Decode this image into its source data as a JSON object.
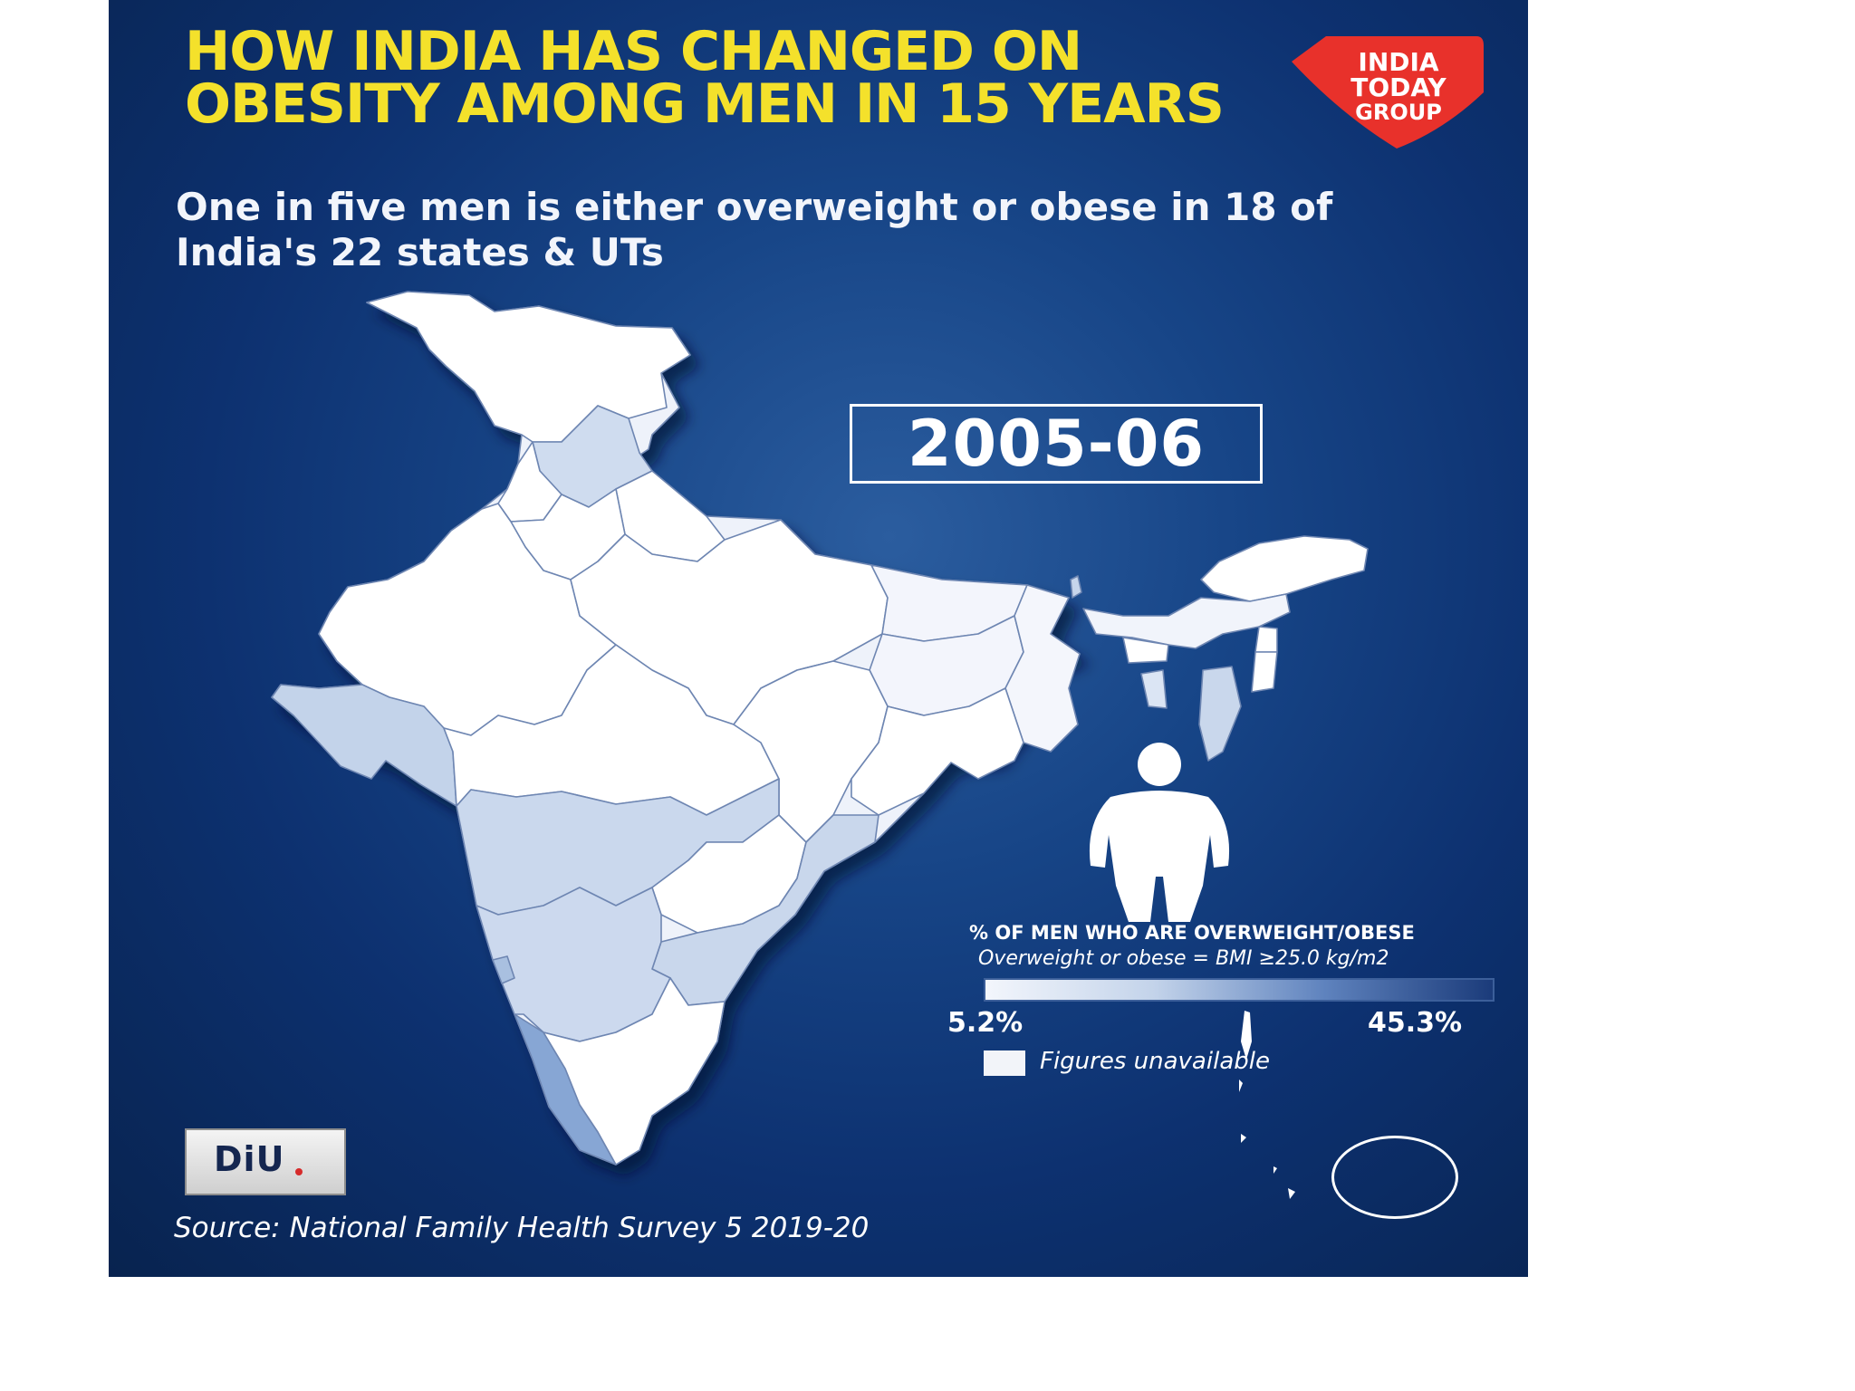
{
  "infographic": {
    "headline": "HOW INDIA HAS CHANGED ON OBESITY AMONG MEN IN 15 YEARS",
    "subtitle": "One in five men is either overweight or obese in 18 of India's 22 states & UTs",
    "year_label": "2005-06",
    "logo": {
      "line1": "INDIA",
      "line2": "TODAY",
      "line3": "GROUP",
      "color": "#e8312b"
    },
    "legend": {
      "title": "% OF MEN WHO ARE OVERWEIGHT/OBESE",
      "note": "Overweight or obese = BMI ≥25.0 kg/m2",
      "min_label": "5.2%",
      "max_label": "45.3%",
      "min_value": 5.2,
      "max_value": 45.3,
      "scale_colors": [
        "#f3f6fc",
        "#c3d3ea",
        "#5f83be",
        "#1b3b7a"
      ],
      "unavailable_label": "Figures unavailable",
      "unavailable_color": "#f2f4f9"
    },
    "badge": {
      "text": "DiU"
    },
    "source": "Source: National Family Health Survey 5 2019-20",
    "colors": {
      "background": "#0d3170",
      "headline": "#f4e12b",
      "text": "#ffffff"
    }
  }
}
